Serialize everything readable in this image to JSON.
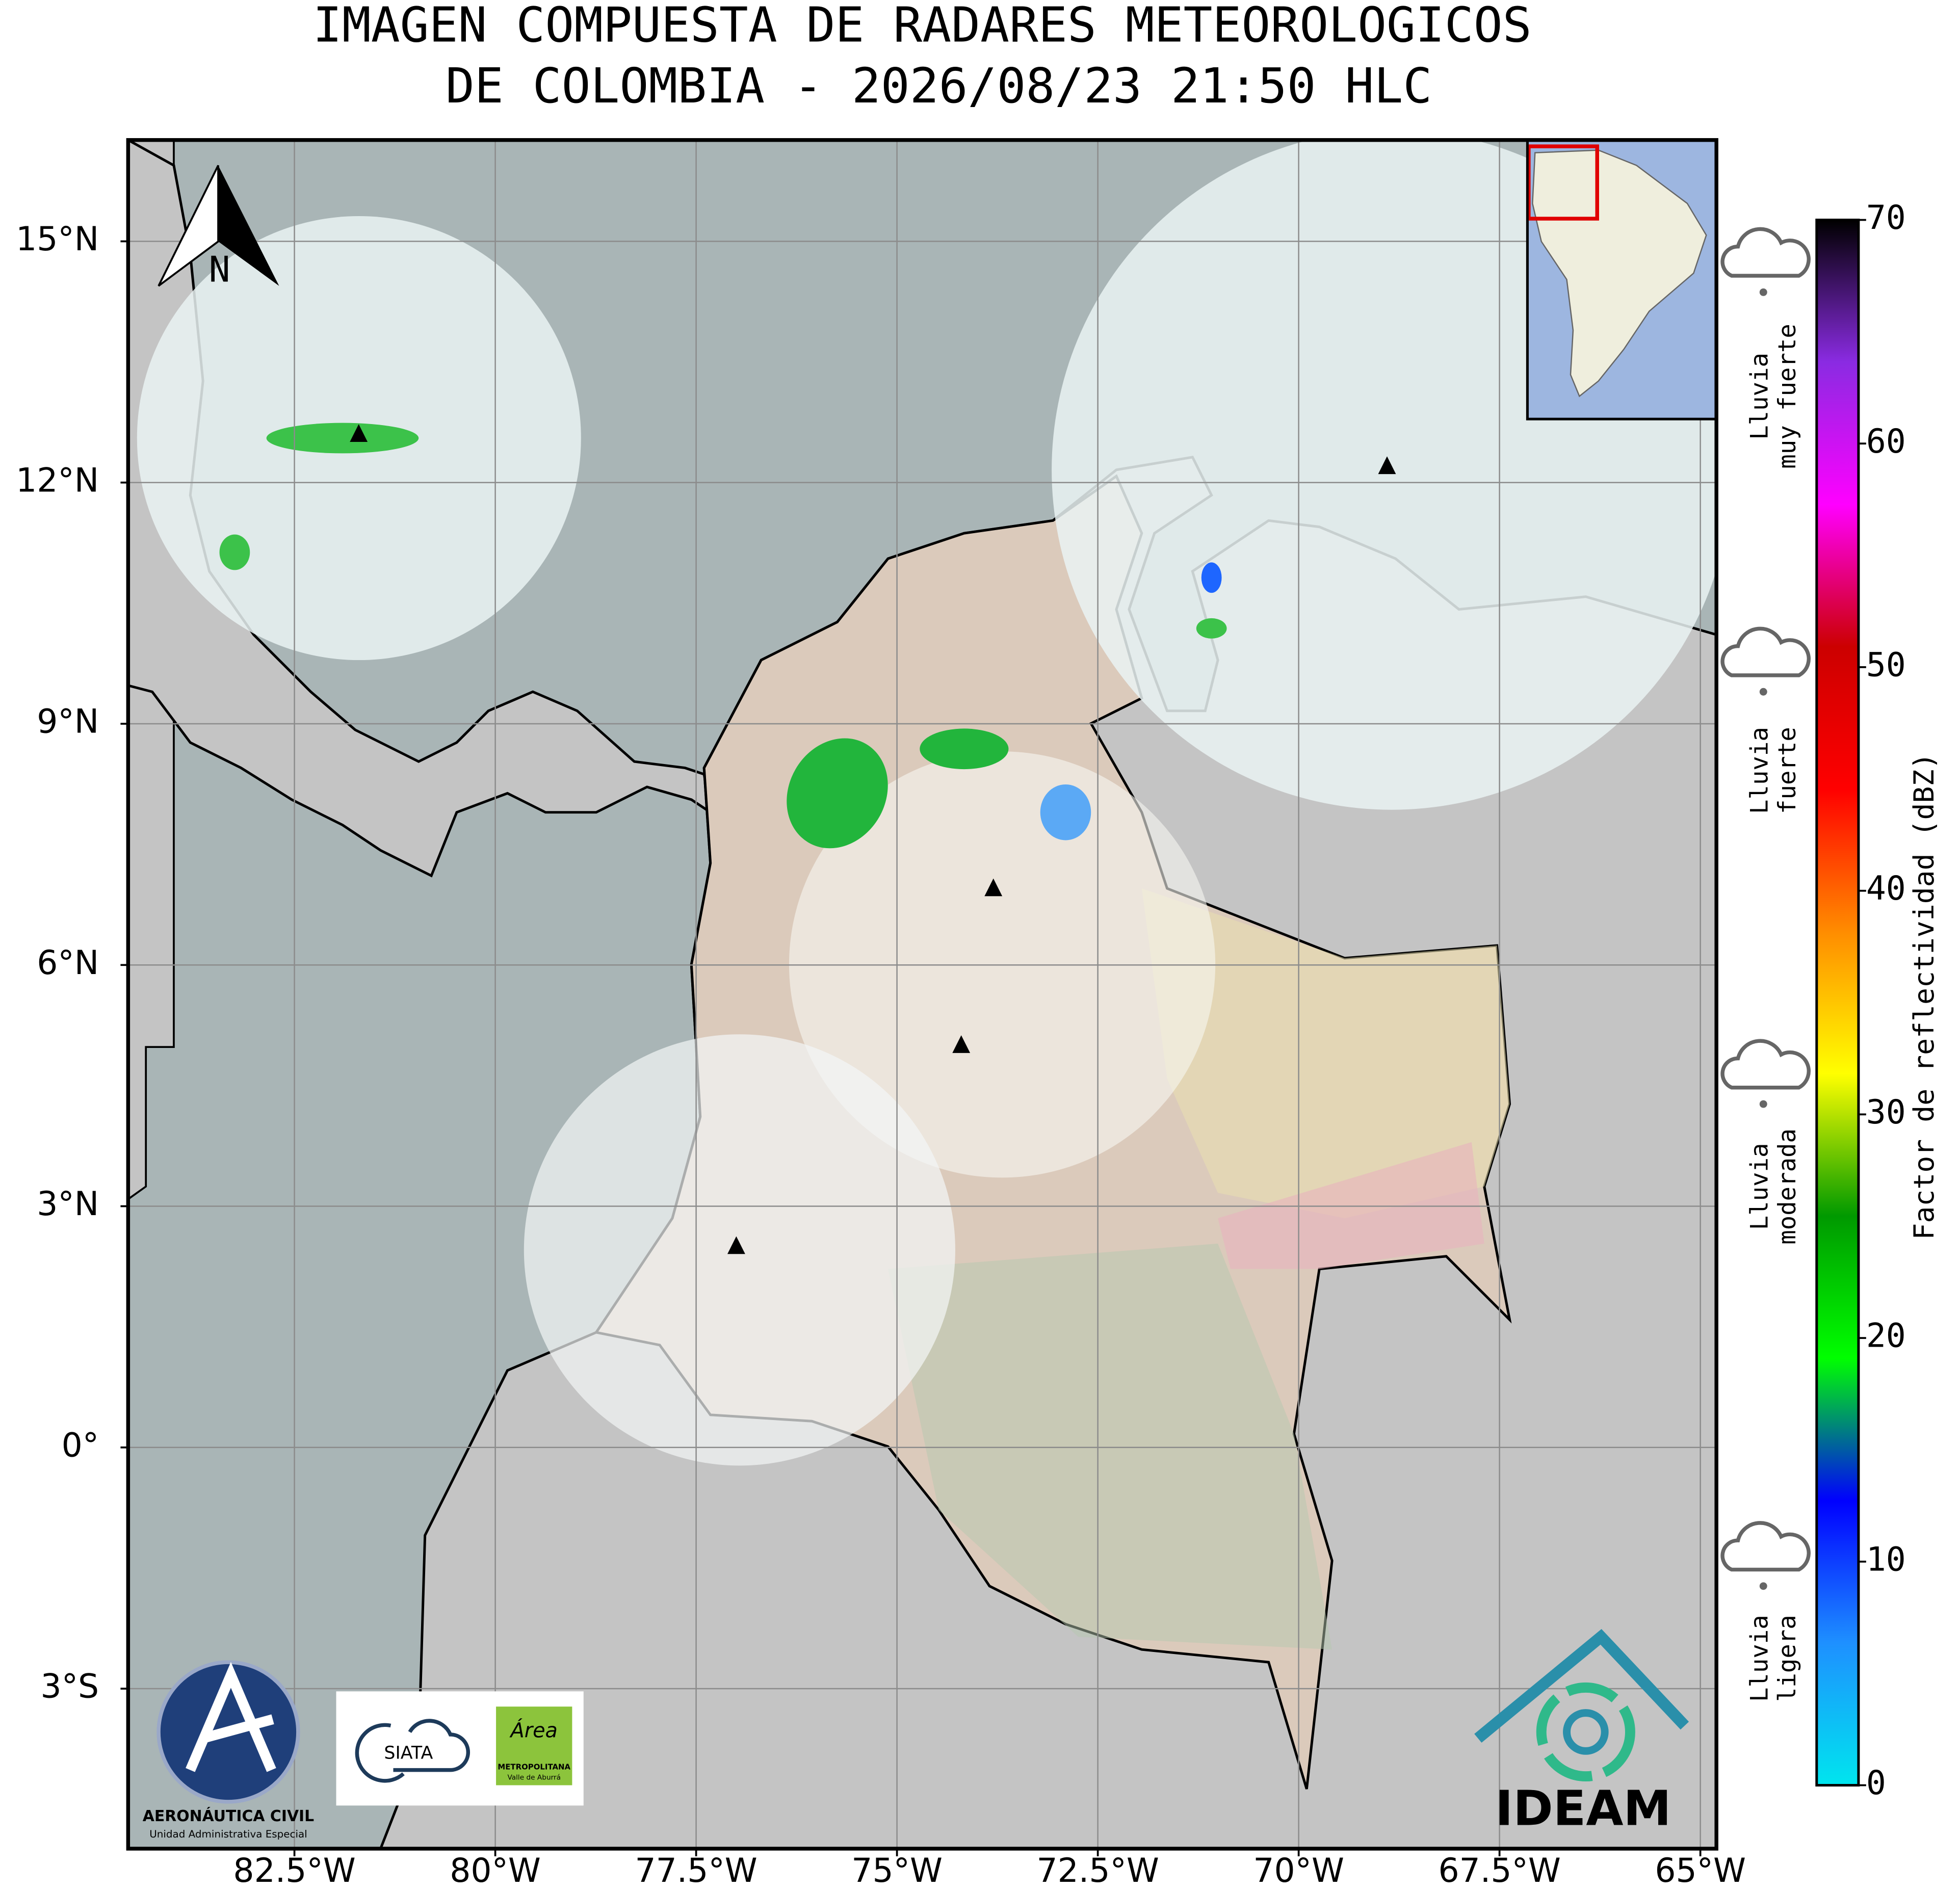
{
  "title_lines": [
    "IMAGEN COMPUESTA DE RADARES METEOROLOGICOS",
    "DE COLOMBIA - 2026/08/23 21:50 HLC"
  ],
  "map": {
    "xlim": [
      -84.57,
      -64.8
    ],
    "ylim": [
      -4.99,
      16.26
    ],
    "grid": true,
    "xticks": [
      {
        "value": -82.5,
        "label": "82.5°W"
      },
      {
        "value": -80,
        "label": "80°W"
      },
      {
        "value": -77.5,
        "label": "77.5°W"
      },
      {
        "value": -75,
        "label": "75°W"
      },
      {
        "value": -72.5,
        "label": "72.5°W"
      },
      {
        "value": -70,
        "label": "70°W"
      },
      {
        "value": -67.5,
        "label": "67.5°W"
      },
      {
        "value": -65,
        "label": "65°W"
      }
    ],
    "yticks": [
      {
        "value": 15,
        "label": "15°N"
      },
      {
        "value": 12,
        "label": "12°N"
      },
      {
        "value": 9,
        "label": "9°N"
      },
      {
        "value": 6,
        "label": "6°N"
      },
      {
        "value": 3,
        "label": "3°N"
      },
      {
        "value": 0,
        "label": "0°"
      },
      {
        "value": -3,
        "label": "3°S"
      }
    ],
    "radars": [
      {
        "lon": -81.7,
        "lat": 12.6
      },
      {
        "lon": -68.9,
        "lat": 12.2
      },
      {
        "lon": -73.8,
        "lat": 6.95
      },
      {
        "lon": -74.2,
        "lat": 5.0
      },
      {
        "lon": -77.0,
        "lat": 2.5
      }
    ]
  },
  "north_label": "N",
  "colorbar": {
    "label": "Factor de reflectividad (dBZ)",
    "lim": [
      0,
      70
    ],
    "ticks": [
      0,
      10,
      20,
      30,
      40,
      50,
      60,
      70
    ],
    "colors": [
      "#00e5ee",
      "#1e90ff",
      "#0000ff",
      "#00ff00",
      "#009900",
      "#ffff00",
      "#ff8c00",
      "#ff0000",
      "#cc0000",
      "#ff00ff",
      "#8a2be2",
      "#000000"
    ]
  },
  "rain_levels": [
    {
      "lines": [
        "Lluvia",
        "muy fuerte"
      ]
    },
    {
      "lines": [
        "Lluvia",
        "fuerte"
      ]
    },
    {
      "lines": [
        "Lluvia",
        "moderada"
      ]
    },
    {
      "lines": [
        "Lluvia",
        "ligera"
      ]
    }
  ],
  "logos": {
    "aerocivil": {
      "name": "AERONÁUTICA CIVIL",
      "subtitle": "Unidad Administrativa Especial"
    },
    "siata": "SIATA",
    "area": {
      "name": "Área",
      "lines": [
        "METROPOLITANA",
        "Valle de Aburrá"
      ]
    },
    "ideam": "IDEAM"
  }
}
